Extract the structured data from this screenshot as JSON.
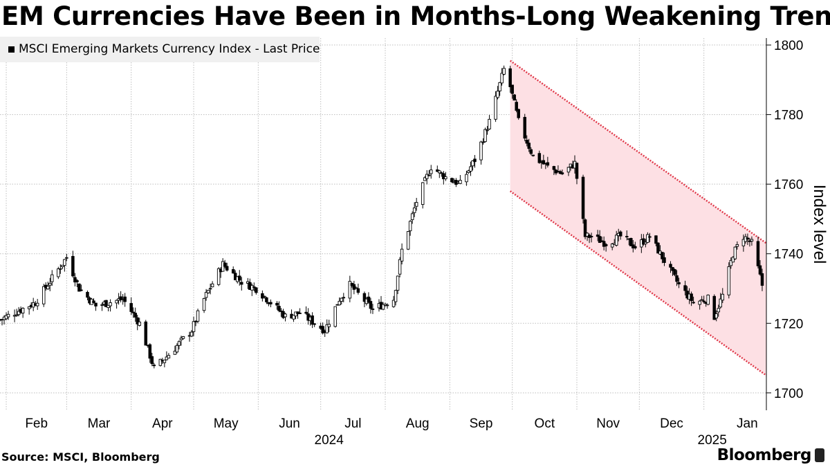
{
  "title": "EM Currencies Have Been in Months-Long Weakening Trend",
  "legend": {
    "label": "MSCI Emerging Markets Currency Index - Last Price"
  },
  "source": "Source: MSCI, Bloomberg",
  "brand": "Bloomberg",
  "chart_data": {
    "type": "candlestick",
    "title": "EM Currencies Have Been in Months-Long Weakening Trend",
    "ylabel": "Index level",
    "xlabel": "",
    "ylim": [
      1695,
      1802
    ],
    "yticks": [
      1700,
      1720,
      1740,
      1760,
      1780,
      1800
    ],
    "x_axis": {
      "start": "2024-01-29",
      "end": "2025-01-31"
    },
    "month_ticks": [
      {
        "label": "Feb",
        "date": "2024-02-01"
      },
      {
        "label": "Mar",
        "date": "2024-03-01"
      },
      {
        "label": "Apr",
        "date": "2024-04-01"
      },
      {
        "label": "May",
        "date": "2024-05-01"
      },
      {
        "label": "Jun",
        "date": "2024-06-01"
      },
      {
        "label": "Jul",
        "date": "2024-07-01"
      },
      {
        "label": "Aug",
        "date": "2024-08-01"
      },
      {
        "label": "Sep",
        "date": "2024-09-01"
      },
      {
        "label": "Oct",
        "date": "2024-10-01"
      },
      {
        "label": "Nov",
        "date": "2024-11-01"
      },
      {
        "label": "Dec",
        "date": "2024-12-01"
      },
      {
        "label": "Jan",
        "date": "2025-01-01"
      }
    ],
    "year_labels": [
      {
        "label": "2024",
        "date": "2024-07-01"
      },
      {
        "label": "2025",
        "date": "2025-01-01"
      }
    ],
    "grid": true,
    "close_path": [
      [
        "2024-01-29",
        1721
      ],
      [
        "2024-02-15",
        1726
      ],
      [
        "2024-03-01",
        1739
      ],
      [
        "2024-03-07",
        1730
      ],
      [
        "2024-03-15",
        1725
      ],
      [
        "2024-03-28",
        1727
      ],
      [
        "2024-04-05",
        1720
      ],
      [
        "2024-04-12",
        1707
      ],
      [
        "2024-04-19",
        1711
      ],
      [
        "2024-04-30",
        1718
      ],
      [
        "2024-05-06",
        1727
      ],
      [
        "2024-05-15",
        1737
      ],
      [
        "2024-05-24",
        1732
      ],
      [
        "2024-05-31",
        1730
      ],
      [
        "2024-06-07",
        1726
      ],
      [
        "2024-06-14",
        1722
      ],
      [
        "2024-06-21",
        1723
      ],
      [
        "2024-07-03",
        1718
      ],
      [
        "2024-07-10",
        1727
      ],
      [
        "2024-07-15",
        1731
      ],
      [
        "2024-07-26",
        1724
      ],
      [
        "2024-08-05",
        1727
      ],
      [
        "2024-08-09",
        1741
      ],
      [
        "2024-08-16",
        1755
      ],
      [
        "2024-08-23",
        1765
      ],
      [
        "2024-08-30",
        1762
      ],
      [
        "2024-09-06",
        1760
      ],
      [
        "2024-09-13",
        1767
      ],
      [
        "2024-09-20",
        1778
      ],
      [
        "2024-09-27",
        1793
      ],
      [
        "2024-09-30",
        1788
      ],
      [
        "2024-10-04",
        1778
      ],
      [
        "2024-10-11",
        1768
      ],
      [
        "2024-10-18",
        1765
      ],
      [
        "2024-10-25",
        1763
      ],
      [
        "2024-10-31",
        1766
      ],
      [
        "2024-11-05",
        1745
      ],
      [
        "2024-11-08",
        1745
      ],
      [
        "2024-11-15",
        1743
      ],
      [
        "2024-11-22",
        1745
      ],
      [
        "2024-11-29",
        1742
      ],
      [
        "2024-12-06",
        1745
      ],
      [
        "2024-12-13",
        1738
      ],
      [
        "2024-12-20",
        1731
      ],
      [
        "2024-12-27",
        1726
      ],
      [
        "2025-01-03",
        1727
      ],
      [
        "2025-01-06",
        1722
      ],
      [
        "2025-01-10",
        1728
      ],
      [
        "2025-01-15",
        1740
      ],
      [
        "2025-01-20",
        1745
      ],
      [
        "2025-01-24",
        1743
      ],
      [
        "2025-01-29",
        1731
      ]
    ],
    "trend_channel": {
      "fill": "#fde0e4",
      "line_color": "#e0394a",
      "upper": [
        [
          "2024-09-30",
          1795.5
        ],
        [
          "2025-01-31",
          1743
        ]
      ],
      "lower": [
        [
          "2024-09-30",
          1758
        ],
        [
          "2025-01-31",
          1705
        ]
      ]
    }
  }
}
